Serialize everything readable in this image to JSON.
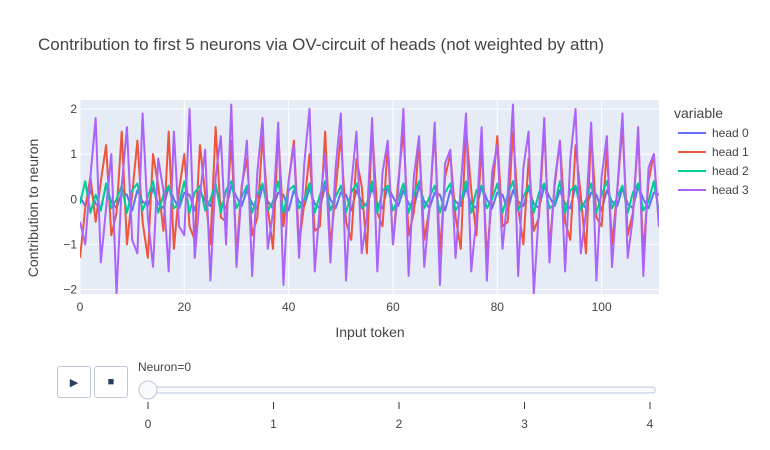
{
  "chart_data": {
    "type": "line",
    "title": "Contribution to first 5 neurons via OV-circuit of heads (not weighted by attn)",
    "xlabel": "Input token",
    "ylabel": "Contribution to neuron",
    "xlim": [
      0,
      111
    ],
    "ylim": [
      -2.1,
      2.2
    ],
    "xticks": [
      0,
      20,
      40,
      60,
      80,
      100
    ],
    "yticks": [
      -2,
      -1,
      0,
      1,
      2
    ],
    "grid": true,
    "legend": {
      "title": "variable",
      "placement": "right"
    },
    "series": [
      {
        "name": "head 0",
        "color": "#636efa",
        "values": [
          0.05,
          -0.15,
          0.2,
          -0.1,
          -0.2,
          0.3,
          -0.05,
          -0.2,
          0.15,
          0.1,
          -0.25,
          0.2,
          -0.05,
          -0.15,
          0.25,
          -0.1,
          -0.2,
          0.3,
          0.0,
          -0.2,
          0.15,
          0.1,
          -0.25,
          0.2,
          -0.05,
          -0.15,
          0.25,
          -0.1,
          -0.2,
          0.3,
          0.05,
          -0.15,
          0.2,
          -0.1,
          -0.2,
          0.3,
          -0.05,
          -0.2,
          0.15,
          0.1,
          -0.25,
          0.2,
          -0.05,
          -0.15,
          0.25,
          -0.1,
          -0.2,
          0.3,
          0.0,
          -0.2,
          0.15,
          0.1,
          -0.25,
          0.2,
          -0.05,
          -0.15,
          0.25,
          -0.1,
          -0.2,
          0.3,
          0.05,
          -0.15,
          0.2,
          -0.1,
          -0.2,
          0.3,
          -0.05,
          -0.2,
          0.15,
          0.1,
          -0.25,
          0.2,
          -0.05,
          -0.15,
          0.25,
          -0.1,
          -0.2,
          0.3,
          0.0,
          -0.2,
          0.15,
          0.1,
          -0.25,
          0.2,
          -0.05,
          -0.15,
          0.25,
          -0.1,
          -0.2,
          0.3,
          0.05,
          -0.15,
          0.2,
          -0.1,
          -0.2,
          0.3,
          -0.05,
          -0.2,
          0.15,
          0.1,
          -0.25,
          0.2,
          -0.05,
          -0.15,
          0.25,
          -0.1,
          -0.2,
          0.3,
          0.0,
          -0.2,
          0.15,
          0.1
        ]
      },
      {
        "name": "head 1",
        "color": "#ef553b",
        "values": [
          -1.3,
          -0.2,
          0.5,
          -0.5,
          0.4,
          1.2,
          -0.8,
          -0.3,
          1.5,
          -1.0,
          0.1,
          1.3,
          -0.5,
          -1.3,
          1.0,
          0.3,
          -0.7,
          1.5,
          -1.1,
          0.2,
          1.0,
          -0.6,
          -0.9,
          1.2,
          0.1,
          -1.0,
          1.6,
          -0.4,
          -0.5,
          1.3,
          -1.2,
          0.3,
          0.9,
          -0.8,
          -0.4,
          1.4,
          -0.2,
          -1.1,
          1.5,
          -0.6,
          0.4,
          1.3,
          -1.0,
          -0.1,
          1.0,
          -0.7,
          -0.6,
          1.5,
          -1.1,
          0.2,
          1.4,
          -0.5,
          -0.9,
          0.9,
          0.3,
          -1.2,
          1.6,
          -0.3,
          -0.6,
          1.2,
          -1.0,
          0.4,
          1.5,
          -0.8,
          -0.3,
          1.3,
          -0.9,
          -0.2,
          1.5,
          -1.2,
          0.5,
          1.0,
          -0.4,
          -1.1,
          1.6,
          0.2,
          -0.8,
          1.2,
          -1.3,
          0.1,
          1.4,
          -0.6,
          -0.5,
          1.5,
          -0.2,
          -1.0,
          0.9,
          -0.7,
          -0.4,
          1.6,
          -1.1,
          0.3,
          1.3,
          -0.5,
          -0.9,
          1.2,
          0.1,
          -1.2,
          1.5,
          -0.4,
          -0.6,
          1.1,
          -1.0,
          0.2,
          1.6,
          -0.8,
          -0.3,
          1.4,
          -1.2,
          0.4,
          1.0,
          -0.6
        ]
      },
      {
        "name": "head 2",
        "color": "#00cc96",
        "values": [
          -0.1,
          0.4,
          -0.3,
          0.1,
          -0.25,
          0.35,
          -0.2,
          0.0,
          0.3,
          -0.3,
          0.2,
          0.35,
          -0.25,
          0.05,
          0.4,
          -0.3,
          0.1,
          0.3,
          -0.2,
          -0.1,
          0.4,
          -0.3,
          0.15,
          0.3,
          -0.25,
          0.0,
          0.35,
          -0.3,
          0.2,
          0.4,
          -0.2,
          0.05,
          0.3,
          -0.3,
          0.1,
          0.35,
          -0.25,
          -0.05,
          0.4,
          -0.3,
          0.2,
          0.3,
          -0.2,
          0.0,
          0.35,
          -0.3,
          0.1,
          0.4,
          -0.25,
          0.05,
          0.3,
          -0.3,
          0.15,
          0.35,
          -0.2,
          -0.1,
          0.4,
          -0.3,
          0.2,
          0.3,
          -0.25,
          0.0,
          0.35,
          -0.3,
          0.1,
          0.4,
          -0.2,
          0.05,
          0.3,
          -0.3,
          0.15,
          0.35,
          -0.25,
          -0.05,
          0.4,
          -0.3,
          0.2,
          0.3,
          -0.2,
          0.0,
          0.35,
          -0.3,
          0.1,
          0.4,
          -0.25,
          0.05,
          0.3,
          -0.3,
          0.15,
          0.35,
          -0.2,
          -0.1,
          0.4,
          -0.3,
          0.2,
          0.3,
          -0.25,
          0.0,
          0.35,
          -0.3,
          0.1,
          0.4,
          -0.2,
          0.05,
          0.3,
          -0.3,
          0.15,
          0.35,
          -0.25,
          -0.05,
          0.4,
          -0.3,
          0.2,
          0.3
        ]
      },
      {
        "name": "head 3",
        "color": "#ab63fa",
        "values": [
          -0.5,
          -1.0,
          0.5,
          1.8,
          -1.4,
          -0.2,
          1.0,
          -2.1,
          0.3,
          1.6,
          -0.9,
          -1.2,
          1.9,
          -0.4,
          -1.5,
          0.9,
          0.2,
          -1.6,
          1.5,
          -0.6,
          -0.8,
          2.0,
          -1.3,
          0.1,
          1.1,
          -1.8,
          0.5,
          1.4,
          -1.0,
          2.1,
          -1.5,
          0.2,
          1.3,
          -1.7,
          0.6,
          1.8,
          -1.1,
          -0.3,
          1.7,
          -1.9,
          0.4,
          1.2,
          -1.3,
          0.8,
          2.0,
          -1.6,
          -0.1,
          1.0,
          -1.4,
          0.7,
          1.9,
          -1.8,
          0.3,
          1.5,
          -1.2,
          -0.4,
          1.8,
          -1.6,
          0.6,
          1.3,
          -1.0,
          0.2,
          2.0,
          -1.7,
          0.5,
          1.4,
          -1.5,
          -0.2,
          1.7,
          -1.9,
          0.8,
          1.1,
          -1.3,
          0.3,
          1.9,
          -1.6,
          -0.4,
          1.6,
          -1.8,
          0.6,
          1.2,
          -1.1,
          0.1,
          2.1,
          -1.7,
          0.7,
          1.5,
          -2.1,
          -0.2,
          1.8,
          -1.4,
          0.4,
          1.3,
          -1.6,
          0.9,
          2.0,
          -1.2,
          -0.3,
          1.7,
          -1.8,
          0.5,
          1.4,
          -1.5,
          0.2,
          1.9,
          -1.3,
          -0.4,
          1.6,
          -1.7,
          0.7,
          1.0,
          -0.6,
          1.5
        ]
      }
    ]
  },
  "controls": {
    "play_label": "▶",
    "stop_label": "■",
    "slider_label": "Neuron=0",
    "slider_ticks": [
      "0",
      "1",
      "2",
      "3",
      "4"
    ],
    "slider_value": 0
  }
}
